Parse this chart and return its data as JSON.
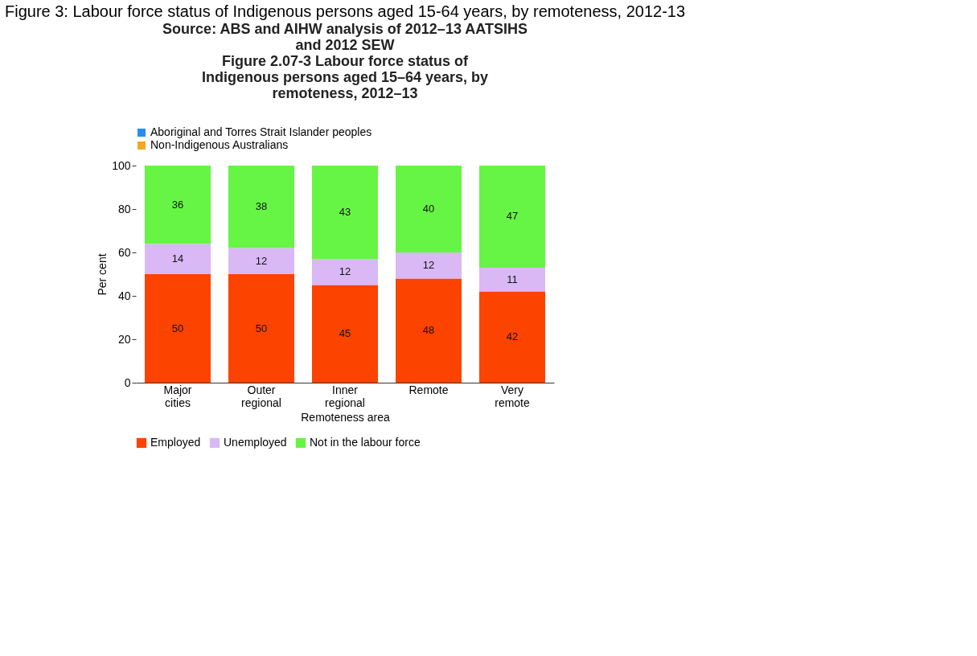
{
  "chart_data": {
    "type": "bar",
    "stacked": true,
    "title": "Figure 3: Labour force status of Indigenous persons aged 15-64 years, by remoteness, 2012-13",
    "subtitle": "Figure 2.07-3 Labour force status of Indigenous persons aged 15–64 years, by remoteness, 2012–13",
    "annotations": [
      "Source: ABS and AIHW analysis of 2012–13 AATSIHS and 2012 SEW"
    ],
    "categories": [
      "Major cities",
      "Outer regional",
      "Inner regional",
      "Remote",
      "Very remote"
    ],
    "series": [
      {
        "name": "Employed",
        "color": "#fc4300",
        "values": [
          50,
          50,
          45,
          48,
          42
        ]
      },
      {
        "name": "Unemployed",
        "color": "#d9b8f5",
        "values": [
          14,
          12,
          12,
          12,
          11
        ]
      },
      {
        "name": "Not in the labour force",
        "color": "#66f545",
        "values": [
          36,
          38,
          43,
          40,
          47
        ]
      },
      {
        "name": "Aboriginal and Torres Strait Islander peoples",
        "color": "#2b8cf0",
        "values": [
          null,
          null,
          null,
          null,
          null
        ]
      },
      {
        "name": "Non-Indigenous Australians",
        "color": "#f5a623",
        "values": [
          null,
          null,
          null,
          null,
          null
        ]
      }
    ],
    "xlabel": "Remoteness area",
    "ylabel": "Per cent",
    "ylim": [
      0,
      100
    ],
    "yticks": [
      0,
      20,
      40,
      60,
      80,
      100
    ],
    "data_labels": true,
    "legend": "bottom",
    "grid": false
  }
}
